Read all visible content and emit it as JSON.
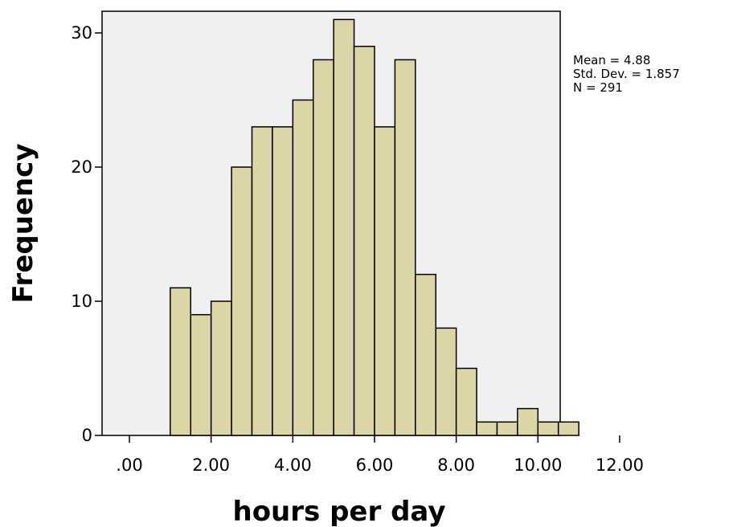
{
  "chart_data": {
    "type": "bar",
    "subtype": "histogram",
    "title": "",
    "xlabel": "hours per day",
    "ylabel": "Frequency",
    "xlim": [
      -1.0,
      12.5
    ],
    "ylim": [
      0,
      32
    ],
    "bin_width": 0.5,
    "x_ticks": [
      0,
      2,
      4,
      6,
      8,
      10,
      12
    ],
    "x_tick_labels": [
      ".00",
      "2.00",
      "4.00",
      "6.00",
      "8.00",
      "10.00",
      "12.00"
    ],
    "y_ticks": [
      0,
      10,
      20,
      30
    ],
    "y_tick_labels": [
      "0",
      "10",
      "20",
      "30"
    ],
    "bins": [
      {
        "start": 1.0,
        "end": 1.5,
        "count": 11
      },
      {
        "start": 1.5,
        "end": 2.0,
        "count": 9
      },
      {
        "start": 2.0,
        "end": 2.5,
        "count": 10
      },
      {
        "start": 2.5,
        "end": 3.0,
        "count": 20
      },
      {
        "start": 3.0,
        "end": 3.5,
        "count": 23
      },
      {
        "start": 3.5,
        "end": 4.0,
        "count": 23
      },
      {
        "start": 4.0,
        "end": 4.5,
        "count": 25
      },
      {
        "start": 4.5,
        "end": 5.0,
        "count": 28
      },
      {
        "start": 5.0,
        "end": 5.5,
        "count": 31
      },
      {
        "start": 5.5,
        "end": 6.0,
        "count": 29
      },
      {
        "start": 6.0,
        "end": 6.5,
        "count": 23
      },
      {
        "start": 6.5,
        "end": 7.0,
        "count": 28
      },
      {
        "start": 7.0,
        "end": 7.5,
        "count": 12
      },
      {
        "start": 7.5,
        "end": 8.0,
        "count": 8
      },
      {
        "start": 8.0,
        "end": 8.5,
        "count": 5
      },
      {
        "start": 8.5,
        "end": 9.0,
        "count": 1
      },
      {
        "start": 9.0,
        "end": 9.5,
        "count": 1
      },
      {
        "start": 9.5,
        "end": 10.0,
        "count": 2
      },
      {
        "start": 10.0,
        "end": 10.5,
        "count": 1
      },
      {
        "start": 10.5,
        "end": 11.0,
        "count": 1
      }
    ],
    "grid": false,
    "stats": {
      "mean": "Mean = 4.88",
      "std_dev": "Std. Dev. = 1.857",
      "n": "N = 291"
    },
    "colors": {
      "bar_fill": "#dcd6a6",
      "bar_stroke": "#000000",
      "plot_background": "#f0f0f0"
    }
  }
}
